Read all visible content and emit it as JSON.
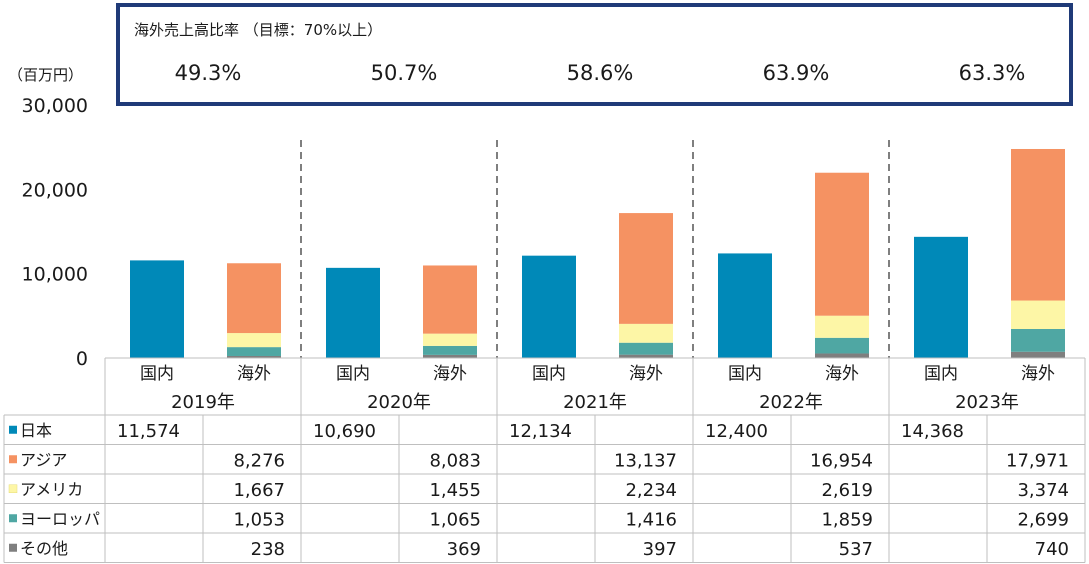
{
  "ratio_box": {
    "title": "海外売上高比率 （目標：70%以上）",
    "values": [
      "49.3%",
      "50.7%",
      "58.6%",
      "63.9%",
      "63.3%"
    ]
  },
  "chart_data": {
    "type": "bar",
    "stacked": true,
    "ylabel": "（百万円）",
    "ylim": [
      0,
      30000
    ],
    "yticks": [
      "30,000",
      "20,000",
      "10,000",
      "0"
    ],
    "ytick_values": [
      30000,
      20000,
      10000,
      0
    ],
    "years": [
      "2019年",
      "2020年",
      "2021年",
      "2022年",
      "2023年"
    ],
    "bar_labels": [
      "国内",
      "海外"
    ],
    "domestic": {
      "name": "日本",
      "color": "#0089b8",
      "values": [
        11574,
        10690,
        12134,
        12400,
        14368
      ],
      "labels": [
        "11,574",
        "10,690",
        "12,134",
        "12,400",
        "14,368"
      ]
    },
    "overseas": [
      {
        "name": "その他",
        "color": "#7f7f7f",
        "values": [
          238,
          369,
          397,
          537,
          740
        ],
        "labels": [
          "238",
          "369",
          "397",
          "537",
          "740"
        ]
      },
      {
        "name": "ヨーロッパ",
        "color": "#4fa7a3",
        "values": [
          1053,
          1065,
          1416,
          1859,
          2699
        ],
        "labels": [
          "1,053",
          "1,065",
          "1,416",
          "1,859",
          "2,699"
        ]
      },
      {
        "name": "アメリカ",
        "color": "#fdf6a6",
        "values": [
          1667,
          1455,
          2234,
          2619,
          3374
        ],
        "labels": [
          "1,667",
          "1,455",
          "2,234",
          "2,619",
          "3,374"
        ]
      },
      {
        "name": "アジア",
        "color": "#f59262",
        "values": [
          8276,
          8083,
          13137,
          16954,
          17971
        ],
        "labels": [
          "8,276",
          "8,083",
          "13,137",
          "16,954",
          "17,971"
        ]
      }
    ],
    "table_order": [
      "日本",
      "アジア",
      "アメリカ",
      "ヨーロッパ",
      "その他"
    ],
    "grid": false,
    "legend": "table-left"
  }
}
